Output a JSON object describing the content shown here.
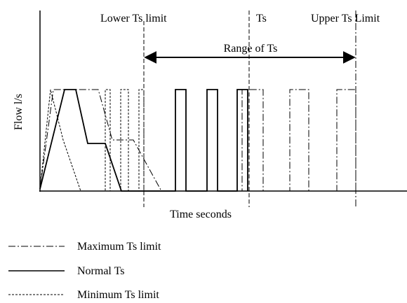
{
  "labels": {
    "lower_limit": "Lower Ts limit",
    "ts": "Ts",
    "upper_limit": "Upper Ts Limit",
    "range": "Range of Ts"
  },
  "axes": {
    "y_label": "Flow l/s",
    "x_label": "Time seconds"
  },
  "legend": [
    {
      "label": "Maximum Ts limit"
    },
    {
      "label": "Normal Ts"
    },
    {
      "label": "Minimum Ts limit"
    }
  ]
}
